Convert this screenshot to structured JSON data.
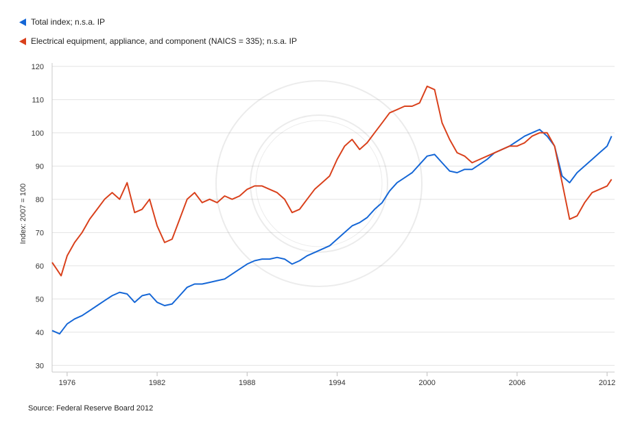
{
  "legend": [
    {
      "label": "Total index; n.s.a. IP",
      "color": "#1466d6"
    },
    {
      "label": "Electrical equipment, appliance, and component  (NAICS = 335); n.s.a. IP",
      "color": "#d9401b"
    }
  ],
  "source": "Source: Federal Reserve Board 2012",
  "chart_data": {
    "type": "line",
    "title": "",
    "xlabel": "",
    "ylabel": "Index: 2007 = 100",
    "ylim": [
      28,
      121
    ],
    "xlim": [
      1975.0,
      2012.5
    ],
    "yticks": [
      30,
      40,
      50,
      60,
      70,
      80,
      90,
      100,
      110,
      120
    ],
    "xticks": [
      "1976",
      "1982",
      "1988",
      "1994",
      "2000",
      "2006",
      "2012"
    ],
    "grid": "horizontal",
    "legend_position": "top-left",
    "series": [
      {
        "name": "Total index; n.s.a. IP",
        "color": "#1466d6",
        "points": [
          [
            1975.0,
            40.5
          ],
          [
            1975.5,
            39.5
          ],
          [
            1976.0,
            42.5
          ],
          [
            1976.5,
            44.0
          ],
          [
            1977.0,
            45.0
          ],
          [
            1977.5,
            46.5
          ],
          [
            1978.0,
            48.0
          ],
          [
            1978.5,
            49.5
          ],
          [
            1979.0,
            51.0
          ],
          [
            1979.5,
            52.0
          ],
          [
            1980.0,
            51.5
          ],
          [
            1980.5,
            49.0
          ],
          [
            1981.0,
            51.0
          ],
          [
            1981.5,
            51.5
          ],
          [
            1982.0,
            49.0
          ],
          [
            1982.5,
            48.0
          ],
          [
            1983.0,
            48.5
          ],
          [
            1983.5,
            51.0
          ],
          [
            1984.0,
            53.5
          ],
          [
            1984.5,
            54.5
          ],
          [
            1985.0,
            54.5
          ],
          [
            1985.5,
            55.0
          ],
          [
            1986.0,
            55.5
          ],
          [
            1986.5,
            56.0
          ],
          [
            1987.0,
            57.5
          ],
          [
            1987.5,
            59.0
          ],
          [
            1988.0,
            60.5
          ],
          [
            1988.5,
            61.5
          ],
          [
            1989.0,
            62.0
          ],
          [
            1989.5,
            62.0
          ],
          [
            1990.0,
            62.5
          ],
          [
            1990.5,
            62.0
          ],
          [
            1991.0,
            60.5
          ],
          [
            1991.5,
            61.5
          ],
          [
            1992.0,
            63.0
          ],
          [
            1992.5,
            64.0
          ],
          [
            1993.0,
            65.0
          ],
          [
            1993.5,
            66.0
          ],
          [
            1994.0,
            68.0
          ],
          [
            1994.5,
            70.0
          ],
          [
            1995.0,
            72.0
          ],
          [
            1995.5,
            73.0
          ],
          [
            1996.0,
            74.5
          ],
          [
            1996.5,
            77.0
          ],
          [
            1997.0,
            79.0
          ],
          [
            1997.5,
            82.5
          ],
          [
            1998.0,
            85.0
          ],
          [
            1998.5,
            86.5
          ],
          [
            1999.0,
            88.0
          ],
          [
            1999.5,
            90.5
          ],
          [
            2000.0,
            93.0
          ],
          [
            2000.5,
            93.5
          ],
          [
            2001.0,
            91.0
          ],
          [
            2001.5,
            88.5
          ],
          [
            2002.0,
            88.0
          ],
          [
            2002.5,
            89.0
          ],
          [
            2003.0,
            89.0
          ],
          [
            2003.5,
            90.5
          ],
          [
            2004.0,
            92.0
          ],
          [
            2004.5,
            94.0
          ],
          [
            2005.0,
            95.0
          ],
          [
            2005.5,
            96.0
          ],
          [
            2006.0,
            97.5
          ],
          [
            2006.5,
            99.0
          ],
          [
            2007.0,
            100.0
          ],
          [
            2007.5,
            101.0
          ],
          [
            2008.0,
            99.0
          ],
          [
            2008.5,
            96.0
          ],
          [
            2009.0,
            87.0
          ],
          [
            2009.5,
            85.0
          ],
          [
            2010.0,
            88.0
          ],
          [
            2010.5,
            90.0
          ],
          [
            2011.0,
            92.0
          ],
          [
            2011.5,
            94.0
          ],
          [
            2012.0,
            96.0
          ],
          [
            2012.3,
            99.0
          ]
        ]
      },
      {
        "name": "Electrical equipment, appliance, and component  (NAICS = 335); n.s.a. IP",
        "color": "#d9401b",
        "points": [
          [
            1975.0,
            61.0
          ],
          [
            1975.3,
            59.0
          ],
          [
            1975.6,
            57.0
          ],
          [
            1976.0,
            63.0
          ],
          [
            1976.5,
            67.0
          ],
          [
            1977.0,
            70.0
          ],
          [
            1977.5,
            74.0
          ],
          [
            1978.0,
            77.0
          ],
          [
            1978.5,
            80.0
          ],
          [
            1979.0,
            82.0
          ],
          [
            1979.5,
            80.0
          ],
          [
            1980.0,
            85.0
          ],
          [
            1980.5,
            76.0
          ],
          [
            1981.0,
            77.0
          ],
          [
            1981.5,
            80.0
          ],
          [
            1982.0,
            72.0
          ],
          [
            1982.5,
            67.0
          ],
          [
            1983.0,
            68.0
          ],
          [
            1983.5,
            74.0
          ],
          [
            1984.0,
            80.0
          ],
          [
            1984.5,
            82.0
          ],
          [
            1985.0,
            79.0
          ],
          [
            1985.5,
            80.0
          ],
          [
            1986.0,
            79.0
          ],
          [
            1986.5,
            81.0
          ],
          [
            1987.0,
            80.0
          ],
          [
            1987.5,
            81.0
          ],
          [
            1988.0,
            83.0
          ],
          [
            1988.5,
            84.0
          ],
          [
            1989.0,
            84.0
          ],
          [
            1989.5,
            83.0
          ],
          [
            1990.0,
            82.0
          ],
          [
            1990.5,
            80.0
          ],
          [
            1991.0,
            76.0
          ],
          [
            1991.5,
            77.0
          ],
          [
            1992.0,
            80.0
          ],
          [
            1992.5,
            83.0
          ],
          [
            1993.0,
            85.0
          ],
          [
            1993.5,
            87.0
          ],
          [
            1994.0,
            92.0
          ],
          [
            1994.5,
            96.0
          ],
          [
            1995.0,
            98.0
          ],
          [
            1995.5,
            95.0
          ],
          [
            1996.0,
            97.0
          ],
          [
            1996.5,
            100.0
          ],
          [
            1997.0,
            103.0
          ],
          [
            1997.5,
            106.0
          ],
          [
            1998.0,
            107.0
          ],
          [
            1998.5,
            108.0
          ],
          [
            1999.0,
            108.0
          ],
          [
            1999.5,
            109.0
          ],
          [
            2000.0,
            114.0
          ],
          [
            2000.5,
            113.0
          ],
          [
            2001.0,
            103.0
          ],
          [
            2001.5,
            98.0
          ],
          [
            2002.0,
            94.0
          ],
          [
            2002.5,
            93.0
          ],
          [
            2003.0,
            91.0
          ],
          [
            2003.5,
            92.0
          ],
          [
            2004.0,
            93.0
          ],
          [
            2004.5,
            94.0
          ],
          [
            2005.0,
            95.0
          ],
          [
            2005.5,
            96.0
          ],
          [
            2006.0,
            96.0
          ],
          [
            2006.5,
            97.0
          ],
          [
            2007.0,
            99.0
          ],
          [
            2007.5,
            100.0
          ],
          [
            2008.0,
            100.0
          ],
          [
            2008.5,
            96.0
          ],
          [
            2009.0,
            85.0
          ],
          [
            2009.5,
            74.0
          ],
          [
            2010.0,
            75.0
          ],
          [
            2010.5,
            79.0
          ],
          [
            2011.0,
            82.0
          ],
          [
            2011.5,
            83.0
          ],
          [
            2012.0,
            84.0
          ],
          [
            2012.3,
            86.0
          ]
        ]
      }
    ]
  }
}
